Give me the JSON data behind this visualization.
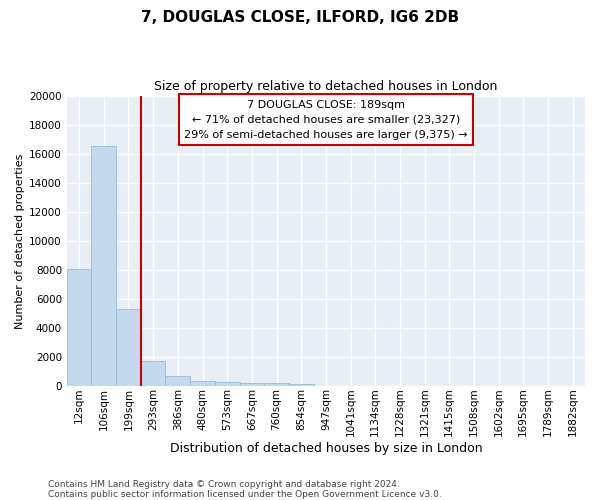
{
  "title": "7, DOUGLAS CLOSE, ILFORD, IG6 2DB",
  "subtitle": "Size of property relative to detached houses in London",
  "xlabel": "Distribution of detached houses by size in London",
  "ylabel": "Number of detached properties",
  "bar_color": "#c5d9ee",
  "bar_edge_color": "#8ab4d4",
  "marker_color": "#cc0000",
  "categories": [
    "12sqm",
    "106sqm",
    "199sqm",
    "293sqm",
    "386sqm",
    "480sqm",
    "573sqm",
    "667sqm",
    "760sqm",
    "854sqm",
    "947sqm",
    "1041sqm",
    "1134sqm",
    "1228sqm",
    "1321sqm",
    "1415sqm",
    "1508sqm",
    "1602sqm",
    "1695sqm",
    "1789sqm",
    "1882sqm"
  ],
  "values": [
    8100,
    16500,
    5300,
    1750,
    700,
    380,
    285,
    230,
    195,
    160,
    0,
    0,
    0,
    0,
    0,
    0,
    0,
    0,
    0,
    0,
    0
  ],
  "ylim": [
    0,
    20000
  ],
  "yticks": [
    0,
    2000,
    4000,
    6000,
    8000,
    10000,
    12000,
    14000,
    16000,
    18000,
    20000
  ],
  "marker_bin_index": 2,
  "annotation_line1": "7 DOUGLAS CLOSE: 189sqm",
  "annotation_line2": "← 71% of detached houses are smaller (23,327)",
  "annotation_line3": "29% of semi-detached houses are larger (9,375) →",
  "footnote1": "Contains HM Land Registry data © Crown copyright and database right 2024.",
  "footnote2": "Contains public sector information licensed under the Open Government Licence v3.0.",
  "plot_bg_color": "#e8eef6",
  "fig_bg_color": "#ffffff",
  "grid_color": "#ffffff",
  "title_fontsize": 11,
  "subtitle_fontsize": 9,
  "ylabel_fontsize": 8,
  "xlabel_fontsize": 9,
  "tick_fontsize": 7.5,
  "footnote_fontsize": 6.5
}
